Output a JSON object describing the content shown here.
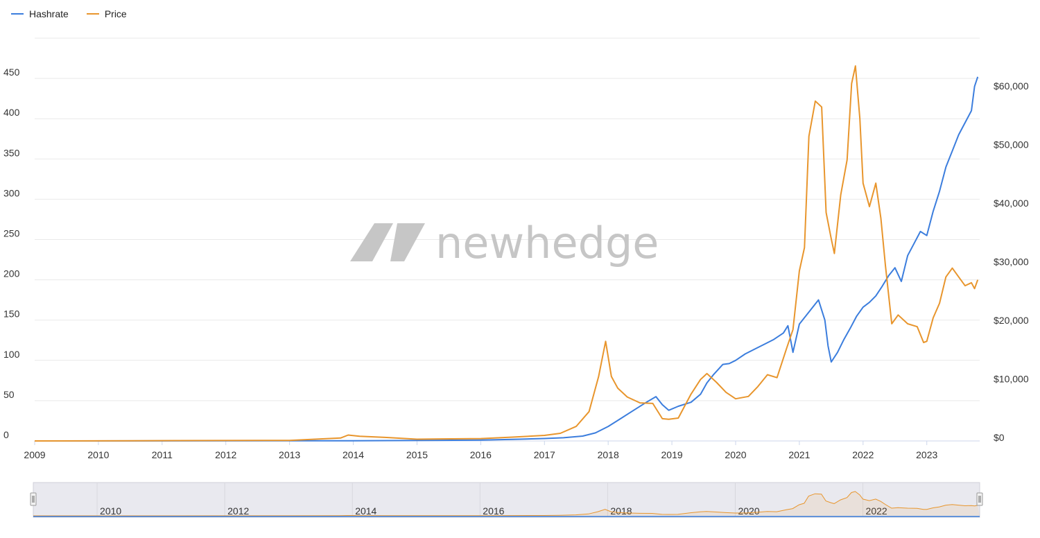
{
  "legend": [
    {
      "label": "Hashrate",
      "color": "#3b7ddd"
    },
    {
      "label": "Price",
      "color": "#e8952c"
    }
  ],
  "watermark": "newhedge",
  "colors": {
    "hashrate": "#3b7ddd",
    "price": "#e8952c",
    "grid": "#e9e9e9",
    "navigator_bg": "#e9e9ef"
  },
  "chart_data": {
    "type": "line",
    "title": "",
    "xlabel": "",
    "ylabel_left": "",
    "ylabel_right": "",
    "xlim": [
      2009.0,
      2023.83
    ],
    "ylim_left": [
      0,
      500
    ],
    "ylim_right": [
      0,
      68750
    ],
    "x_ticks": [
      "2009",
      "2010",
      "2011",
      "2012",
      "2013",
      "2014",
      "2015",
      "2016",
      "2017",
      "2018",
      "2019",
      "2020",
      "2021",
      "2022",
      "2023"
    ],
    "y_left_ticks": [
      0,
      50,
      100,
      150,
      200,
      250,
      300,
      350,
      400,
      450
    ],
    "y_left_tick_labels": [
      "0",
      "50",
      "100",
      "150",
      "200",
      "250",
      "300",
      "350",
      "400",
      "450"
    ],
    "y_right_ticks": [
      0,
      10000,
      20000,
      30000,
      40000,
      50000,
      60000
    ],
    "y_right_tick_labels": [
      "$0",
      "$10,000",
      "$20,000",
      "$30,000",
      "$40,000",
      "$50,000",
      "$60,000"
    ],
    "grid": true,
    "legend_position": "top-left",
    "series": [
      {
        "name": "Hashrate",
        "axis": "left",
        "x": [
          2009.0,
          2014.0,
          2016.0,
          2016.5,
          2017.0,
          2017.3,
          2017.6,
          2017.8,
          2018.0,
          2018.2,
          2018.4,
          2018.6,
          2018.75,
          2018.85,
          2018.95,
          2019.1,
          2019.3,
          2019.45,
          2019.55,
          2019.65,
          2019.8,
          2019.9,
          2020.0,
          2020.15,
          2020.3,
          2020.45,
          2020.6,
          2020.75,
          2020.82,
          2020.9,
          2021.0,
          2021.1,
          2021.2,
          2021.3,
          2021.4,
          2021.45,
          2021.5,
          2021.6,
          2021.7,
          2021.8,
          2021.9,
          2022.0,
          2022.1,
          2022.2,
          2022.3,
          2022.4,
          2022.5,
          2022.6,
          2022.7,
          2022.8,
          2022.9,
          2023.0,
          2023.1,
          2023.2,
          2023.3,
          2023.4,
          2023.5,
          2023.6,
          2023.7,
          2023.75,
          2023.8
        ],
        "y": [
          0,
          0.3,
          1,
          2,
          3,
          4,
          6,
          10,
          18,
          28,
          38,
          48,
          55,
          45,
          38,
          43,
          48,
          58,
          72,
          82,
          95,
          96,
          100,
          108,
          114,
          120,
          126,
          134,
          143,
          110,
          145,
          155,
          165,
          175,
          150,
          118,
          98,
          110,
          126,
          140,
          155,
          166,
          172,
          180,
          192,
          205,
          215,
          198,
          230,
          245,
          260,
          255,
          285,
          310,
          340,
          360,
          380,
          395,
          410,
          440,
          452
        ]
      },
      {
        "name": "Price",
        "axis": "right",
        "x": [
          2009.0,
          2010.5,
          2013.0,
          2013.8,
          2013.92,
          2014.1,
          2014.5,
          2015.0,
          2016.0,
          2016.5,
          2017.0,
          2017.25,
          2017.5,
          2017.7,
          2017.85,
          2017.96,
          2018.05,
          2018.15,
          2018.3,
          2018.5,
          2018.7,
          2018.85,
          2018.95,
          2019.1,
          2019.3,
          2019.45,
          2019.55,
          2019.7,
          2019.85,
          2020.0,
          2020.2,
          2020.35,
          2020.5,
          2020.65,
          2020.8,
          2020.9,
          2021.0,
          2021.08,
          2021.15,
          2021.25,
          2021.35,
          2021.42,
          2021.5,
          2021.55,
          2021.65,
          2021.75,
          2021.82,
          2021.88,
          2021.95,
          2022.0,
          2022.1,
          2022.2,
          2022.28,
          2022.35,
          2022.45,
          2022.55,
          2022.7,
          2022.85,
          2022.95,
          2023.0,
          2023.1,
          2023.2,
          2023.3,
          2023.4,
          2023.5,
          2023.6,
          2023.7,
          2023.75,
          2023.8
        ],
        "y": [
          0,
          30,
          100,
          500,
          1000,
          800,
          600,
          300,
          400,
          650,
          950,
          1300,
          2500,
          5000,
          11000,
          17000,
          11000,
          9000,
          7500,
          6500,
          6400,
          3800,
          3700,
          3900,
          8000,
          10500,
          11500,
          10000,
          8300,
          7200,
          7600,
          9300,
          11300,
          10800,
          15800,
          19000,
          29000,
          33000,
          52000,
          58000,
          57000,
          39000,
          34500,
          32000,
          42000,
          48000,
          61000,
          64000,
          55000,
          44000,
          40000,
          44000,
          38000,
          30000,
          20000,
          21500,
          20000,
          19500,
          16800,
          17000,
          21000,
          23500,
          28000,
          29500,
          28000,
          26500,
          27000,
          26000,
          27500
        ]
      }
    ],
    "navigator": {
      "x_ticks": [
        "2010",
        "2012",
        "2014",
        "2016",
        "2018",
        "2020",
        "2022"
      ]
    }
  }
}
